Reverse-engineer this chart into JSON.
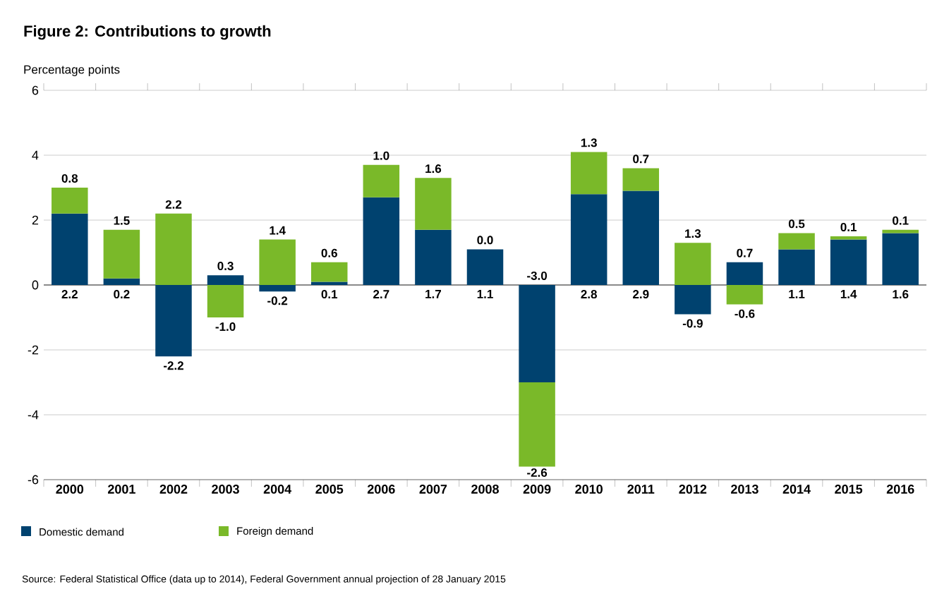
{
  "chart_data": {
    "type": "bar",
    "stacked": true,
    "title": "Figure 2: Contributions to growth",
    "ylabel": "Percentage points",
    "categories": [
      "2000",
      "2001",
      "2002",
      "2003",
      "2004",
      "2005",
      "2006",
      "2007",
      "2008",
      "2009",
      "2010",
      "2011",
      "2012",
      "2013",
      "2014",
      "2015",
      "2016"
    ],
    "series": [
      {
        "name": "Domestic demand",
        "color": "#00426f",
        "values": [
          2.2,
          0.2,
          -2.2,
          0.3,
          -0.2,
          0.1,
          2.7,
          1.7,
          1.1,
          -3.0,
          2.8,
          2.9,
          -0.9,
          0.7,
          1.1,
          1.4,
          1.6
        ],
        "value_labels": [
          "2.2",
          "0.2",
          "-2.2",
          "0.3",
          "-0.2",
          "0.1",
          "2.7",
          "1.7",
          "1.1",
          "-3.0",
          "2.8",
          "2.9",
          "-0.9",
          "0.7",
          "1.1",
          "1.4",
          "1.6"
        ]
      },
      {
        "name": "Foreign demand",
        "color": "#7ab929",
        "values": [
          0.8,
          1.5,
          2.2,
          -1.0,
          1.4,
          0.6,
          1.0,
          1.6,
          0.0,
          -2.6,
          1.3,
          0.7,
          1.3,
          -0.6,
          0.5,
          0.1,
          0.1
        ],
        "value_labels": [
          "0.8",
          "1.5",
          "2.2",
          "-1.0",
          "1.4",
          "0.6",
          "1.0",
          "1.6",
          "0.0",
          "-2.6",
          "1.3",
          "0.7",
          "1.3",
          "-0.6",
          "0.5",
          "0.1",
          "0.1"
        ]
      }
    ],
    "ylim": [
      -6,
      6
    ],
    "yticks": [
      -6,
      -4,
      -2,
      0,
      2,
      4,
      6
    ],
    "grid": "y",
    "legend": "bottom left",
    "annotations": [
      "Source: Federal Statistical Office (data up to 2014), Federal Government annual projection of 28 January 2015"
    ]
  }
}
